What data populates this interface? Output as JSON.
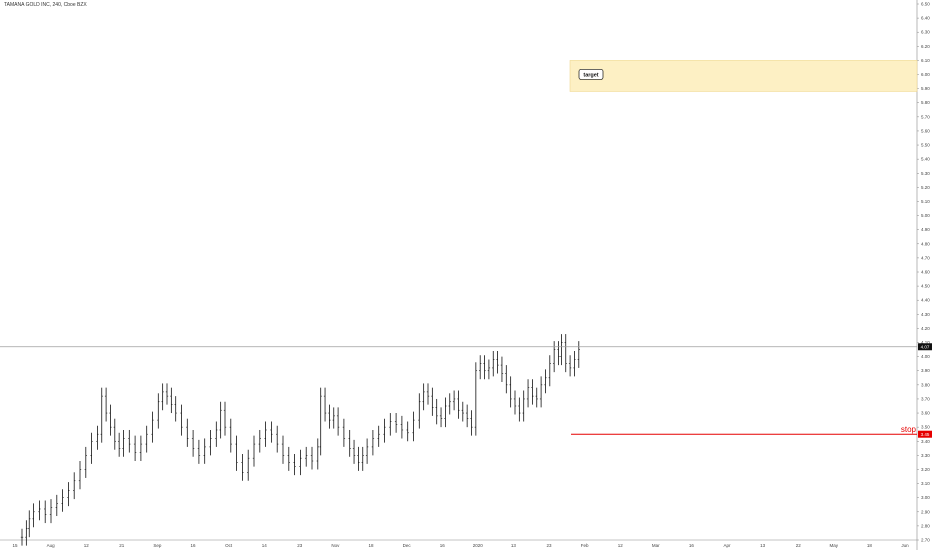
{
  "header": {
    "symbol_title": "TAMANA GOLD INC, 240, Cboe BZX"
  },
  "chart_data": {
    "type": "bar",
    "title": "TAMANA GOLD INC, 240, Cboe BZX",
    "ylim": [
      2.7,
      6.5
    ],
    "yticks": [
      "6.50",
      "6.40",
      "6.30",
      "6.20",
      "6.10",
      "6.00",
      "5.90",
      "5.80",
      "5.70",
      "5.60",
      "5.50",
      "5.40",
      "5.30",
      "5.20",
      "5.10",
      "5.00",
      "4.90",
      "4.80",
      "4.70",
      "4.60",
      "4.50",
      "4.40",
      "4.30",
      "4.20",
      "4.10",
      "4.00",
      "3.90",
      "3.80",
      "3.70",
      "3.60",
      "3.50",
      "3.40",
      "3.30",
      "3.20",
      "3.10",
      "3.00",
      "2.90",
      "2.80",
      "2.70"
    ],
    "xticks": [
      "15",
      "Aug",
      "12",
      "21",
      "Sep",
      "16",
      "Oct",
      "14",
      "23",
      "Nov",
      "18",
      "Dec",
      "16",
      "2020",
      "13",
      "23",
      "Feb",
      "12",
      "Mar",
      "16",
      "Apr",
      "13",
      "22",
      "May",
      "18",
      "Jun"
    ],
    "price_series": [
      {
        "x": 0,
        "y": 2.72
      },
      {
        "x": 3,
        "y": 2.78
      },
      {
        "x": 5,
        "y": 2.85
      },
      {
        "x": 8,
        "y": 2.9
      },
      {
        "x": 12,
        "y": 2.92
      },
      {
        "x": 16,
        "y": 2.88
      },
      {
        "x": 20,
        "y": 2.93
      },
      {
        "x": 24,
        "y": 2.96
      },
      {
        "x": 28,
        "y": 3.0
      },
      {
        "x": 32,
        "y": 3.05
      },
      {
        "x": 36,
        "y": 3.12
      },
      {
        "x": 40,
        "y": 3.2
      },
      {
        "x": 44,
        "y": 3.3
      },
      {
        "x": 48,
        "y": 3.4
      },
      {
        "x": 52,
        "y": 3.45
      },
      {
        "x": 55,
        "y": 3.72
      },
      {
        "x": 58,
        "y": 3.6
      },
      {
        "x": 61,
        "y": 3.5
      },
      {
        "x": 64,
        "y": 3.4
      },
      {
        "x": 67,
        "y": 3.35
      },
      {
        "x": 70,
        "y": 3.42
      },
      {
        "x": 74,
        "y": 3.38
      },
      {
        "x": 78,
        "y": 3.32
      },
      {
        "x": 82,
        "y": 3.38
      },
      {
        "x": 86,
        "y": 3.45
      },
      {
        "x": 90,
        "y": 3.55
      },
      {
        "x": 94,
        "y": 3.68
      },
      {
        "x": 97,
        "y": 3.75
      },
      {
        "x": 100,
        "y": 3.72
      },
      {
        "x": 103,
        "y": 3.66
      },
      {
        "x": 106,
        "y": 3.6
      },
      {
        "x": 110,
        "y": 3.5
      },
      {
        "x": 114,
        "y": 3.42
      },
      {
        "x": 118,
        "y": 3.35
      },
      {
        "x": 122,
        "y": 3.3
      },
      {
        "x": 126,
        "y": 3.36
      },
      {
        "x": 130,
        "y": 3.42
      },
      {
        "x": 134,
        "y": 3.48
      },
      {
        "x": 137,
        "y": 3.62
      },
      {
        "x": 140,
        "y": 3.5
      },
      {
        "x": 144,
        "y": 3.38
      },
      {
        "x": 148,
        "y": 3.25
      },
      {
        "x": 152,
        "y": 3.18
      },
      {
        "x": 156,
        "y": 3.28
      },
      {
        "x": 160,
        "y": 3.38
      },
      {
        "x": 164,
        "y": 3.42
      },
      {
        "x": 168,
        "y": 3.48
      },
      {
        "x": 172,
        "y": 3.45
      },
      {
        "x": 176,
        "y": 3.38
      },
      {
        "x": 180,
        "y": 3.3
      },
      {
        "x": 184,
        "y": 3.25
      },
      {
        "x": 188,
        "y": 3.22
      },
      {
        "x": 192,
        "y": 3.28
      },
      {
        "x": 196,
        "y": 3.3
      },
      {
        "x": 200,
        "y": 3.26
      },
      {
        "x": 204,
        "y": 3.36
      },
      {
        "x": 206,
        "y": 3.72
      },
      {
        "x": 209,
        "y": 3.6
      },
      {
        "x": 212,
        "y": 3.55
      },
      {
        "x": 215,
        "y": 3.58
      },
      {
        "x": 218,
        "y": 3.5
      },
      {
        "x": 222,
        "y": 3.42
      },
      {
        "x": 226,
        "y": 3.35
      },
      {
        "x": 229,
        "y": 3.3
      },
      {
        "x": 232,
        "y": 3.25
      },
      {
        "x": 235,
        "y": 3.3
      },
      {
        "x": 238,
        "y": 3.36
      },
      {
        "x": 242,
        "y": 3.42
      },
      {
        "x": 246,
        "y": 3.45
      },
      {
        "x": 250,
        "y": 3.5
      },
      {
        "x": 254,
        "y": 3.54
      },
      {
        "x": 258,
        "y": 3.52
      },
      {
        "x": 262,
        "y": 3.48
      },
      {
        "x": 266,
        "y": 3.46
      },
      {
        "x": 270,
        "y": 3.55
      },
      {
        "x": 274,
        "y": 3.68
      },
      {
        "x": 277,
        "y": 3.75
      },
      {
        "x": 280,
        "y": 3.72
      },
      {
        "x": 283,
        "y": 3.64
      },
      {
        "x": 286,
        "y": 3.58
      },
      {
        "x": 289,
        "y": 3.56
      },
      {
        "x": 292,
        "y": 3.65
      },
      {
        "x": 295,
        "y": 3.68
      },
      {
        "x": 298,
        "y": 3.7
      },
      {
        "x": 301,
        "y": 3.62
      },
      {
        "x": 304,
        "y": 3.6
      },
      {
        "x": 307,
        "y": 3.56
      },
      {
        "x": 310,
        "y": 3.5
      },
      {
        "x": 313,
        "y": 3.9
      },
      {
        "x": 316,
        "y": 3.95
      },
      {
        "x": 319,
        "y": 3.9
      },
      {
        "x": 322,
        "y": 3.92
      },
      {
        "x": 325,
        "y": 3.98
      },
      {
        "x": 328,
        "y": 3.94
      },
      {
        "x": 331,
        "y": 3.88
      },
      {
        "x": 334,
        "y": 3.8
      },
      {
        "x": 337,
        "y": 3.7
      },
      {
        "x": 340,
        "y": 3.65
      },
      {
        "x": 343,
        "y": 3.6
      },
      {
        "x": 346,
        "y": 3.7
      },
      {
        "x": 349,
        "y": 3.78
      },
      {
        "x": 352,
        "y": 3.72
      },
      {
        "x": 355,
        "y": 3.7
      },
      {
        "x": 358,
        "y": 3.8
      },
      {
        "x": 361,
        "y": 3.85
      },
      {
        "x": 364,
        "y": 3.95
      },
      {
        "x": 367,
        "y": 4.05
      },
      {
        "x": 370,
        "y": 4.0
      },
      {
        "x": 372,
        "y": 4.1
      },
      {
        "x": 375,
        "y": 3.95
      },
      {
        "x": 378,
        "y": 3.92
      },
      {
        "x": 381,
        "y": 3.98
      },
      {
        "x": 384,
        "y": 4.05
      }
    ]
  },
  "annotations": {
    "target": {
      "label": "target",
      "low": 5.88,
      "high": 6.1,
      "fill": "#fdf0c4",
      "border": "#f0d890"
    },
    "stop": {
      "label": "stop",
      "value": 3.45,
      "value_text": "3.45",
      "color": "#e60000"
    },
    "last_price": {
      "value": 4.07,
      "value_text": "4.07",
      "line_color": "#9e9e9e",
      "tag_color": "#111111"
    }
  }
}
